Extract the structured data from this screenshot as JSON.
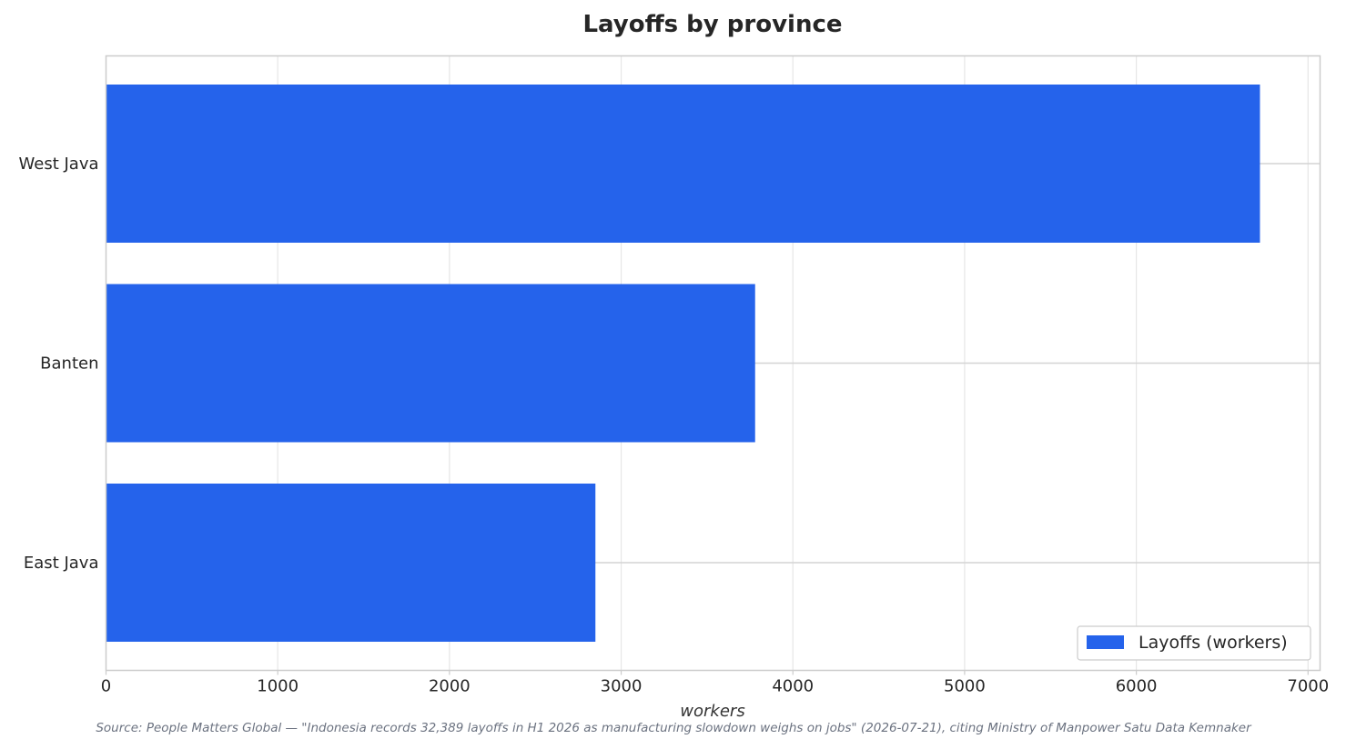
{
  "chart_data": {
    "type": "bar",
    "orientation": "horizontal",
    "title": "Layoffs by province",
    "xlabel": "workers",
    "ylabel": "",
    "categories": [
      "West Java",
      "Banten",
      "East Java"
    ],
    "series": [
      {
        "name": "Layoffs (workers)",
        "values": [
          6720,
          3780,
          2850
        ],
        "color": "#2563eb"
      }
    ],
    "xlim": [
      0,
      7070
    ],
    "xticks": [
      0,
      1000,
      2000,
      3000,
      4000,
      5000,
      6000,
      7000
    ],
    "xtick_labels": [
      "0",
      "1000",
      "2000",
      "3000",
      "4000",
      "5000",
      "6000",
      "7000"
    ],
    "grid": true,
    "legend": "lower-right"
  },
  "source": "Source: People Matters Global — \"Indonesia records 32,389 layoffs in H1 2026 as manufacturing slowdown weighs on jobs\" (2026-07-21), citing Ministry of Manpower Satu Data Kemnaker",
  "colors": {
    "bar": "#2563eb",
    "grid": "#e6e6e6",
    "frame": "#cccccc",
    "text": "#262626"
  }
}
